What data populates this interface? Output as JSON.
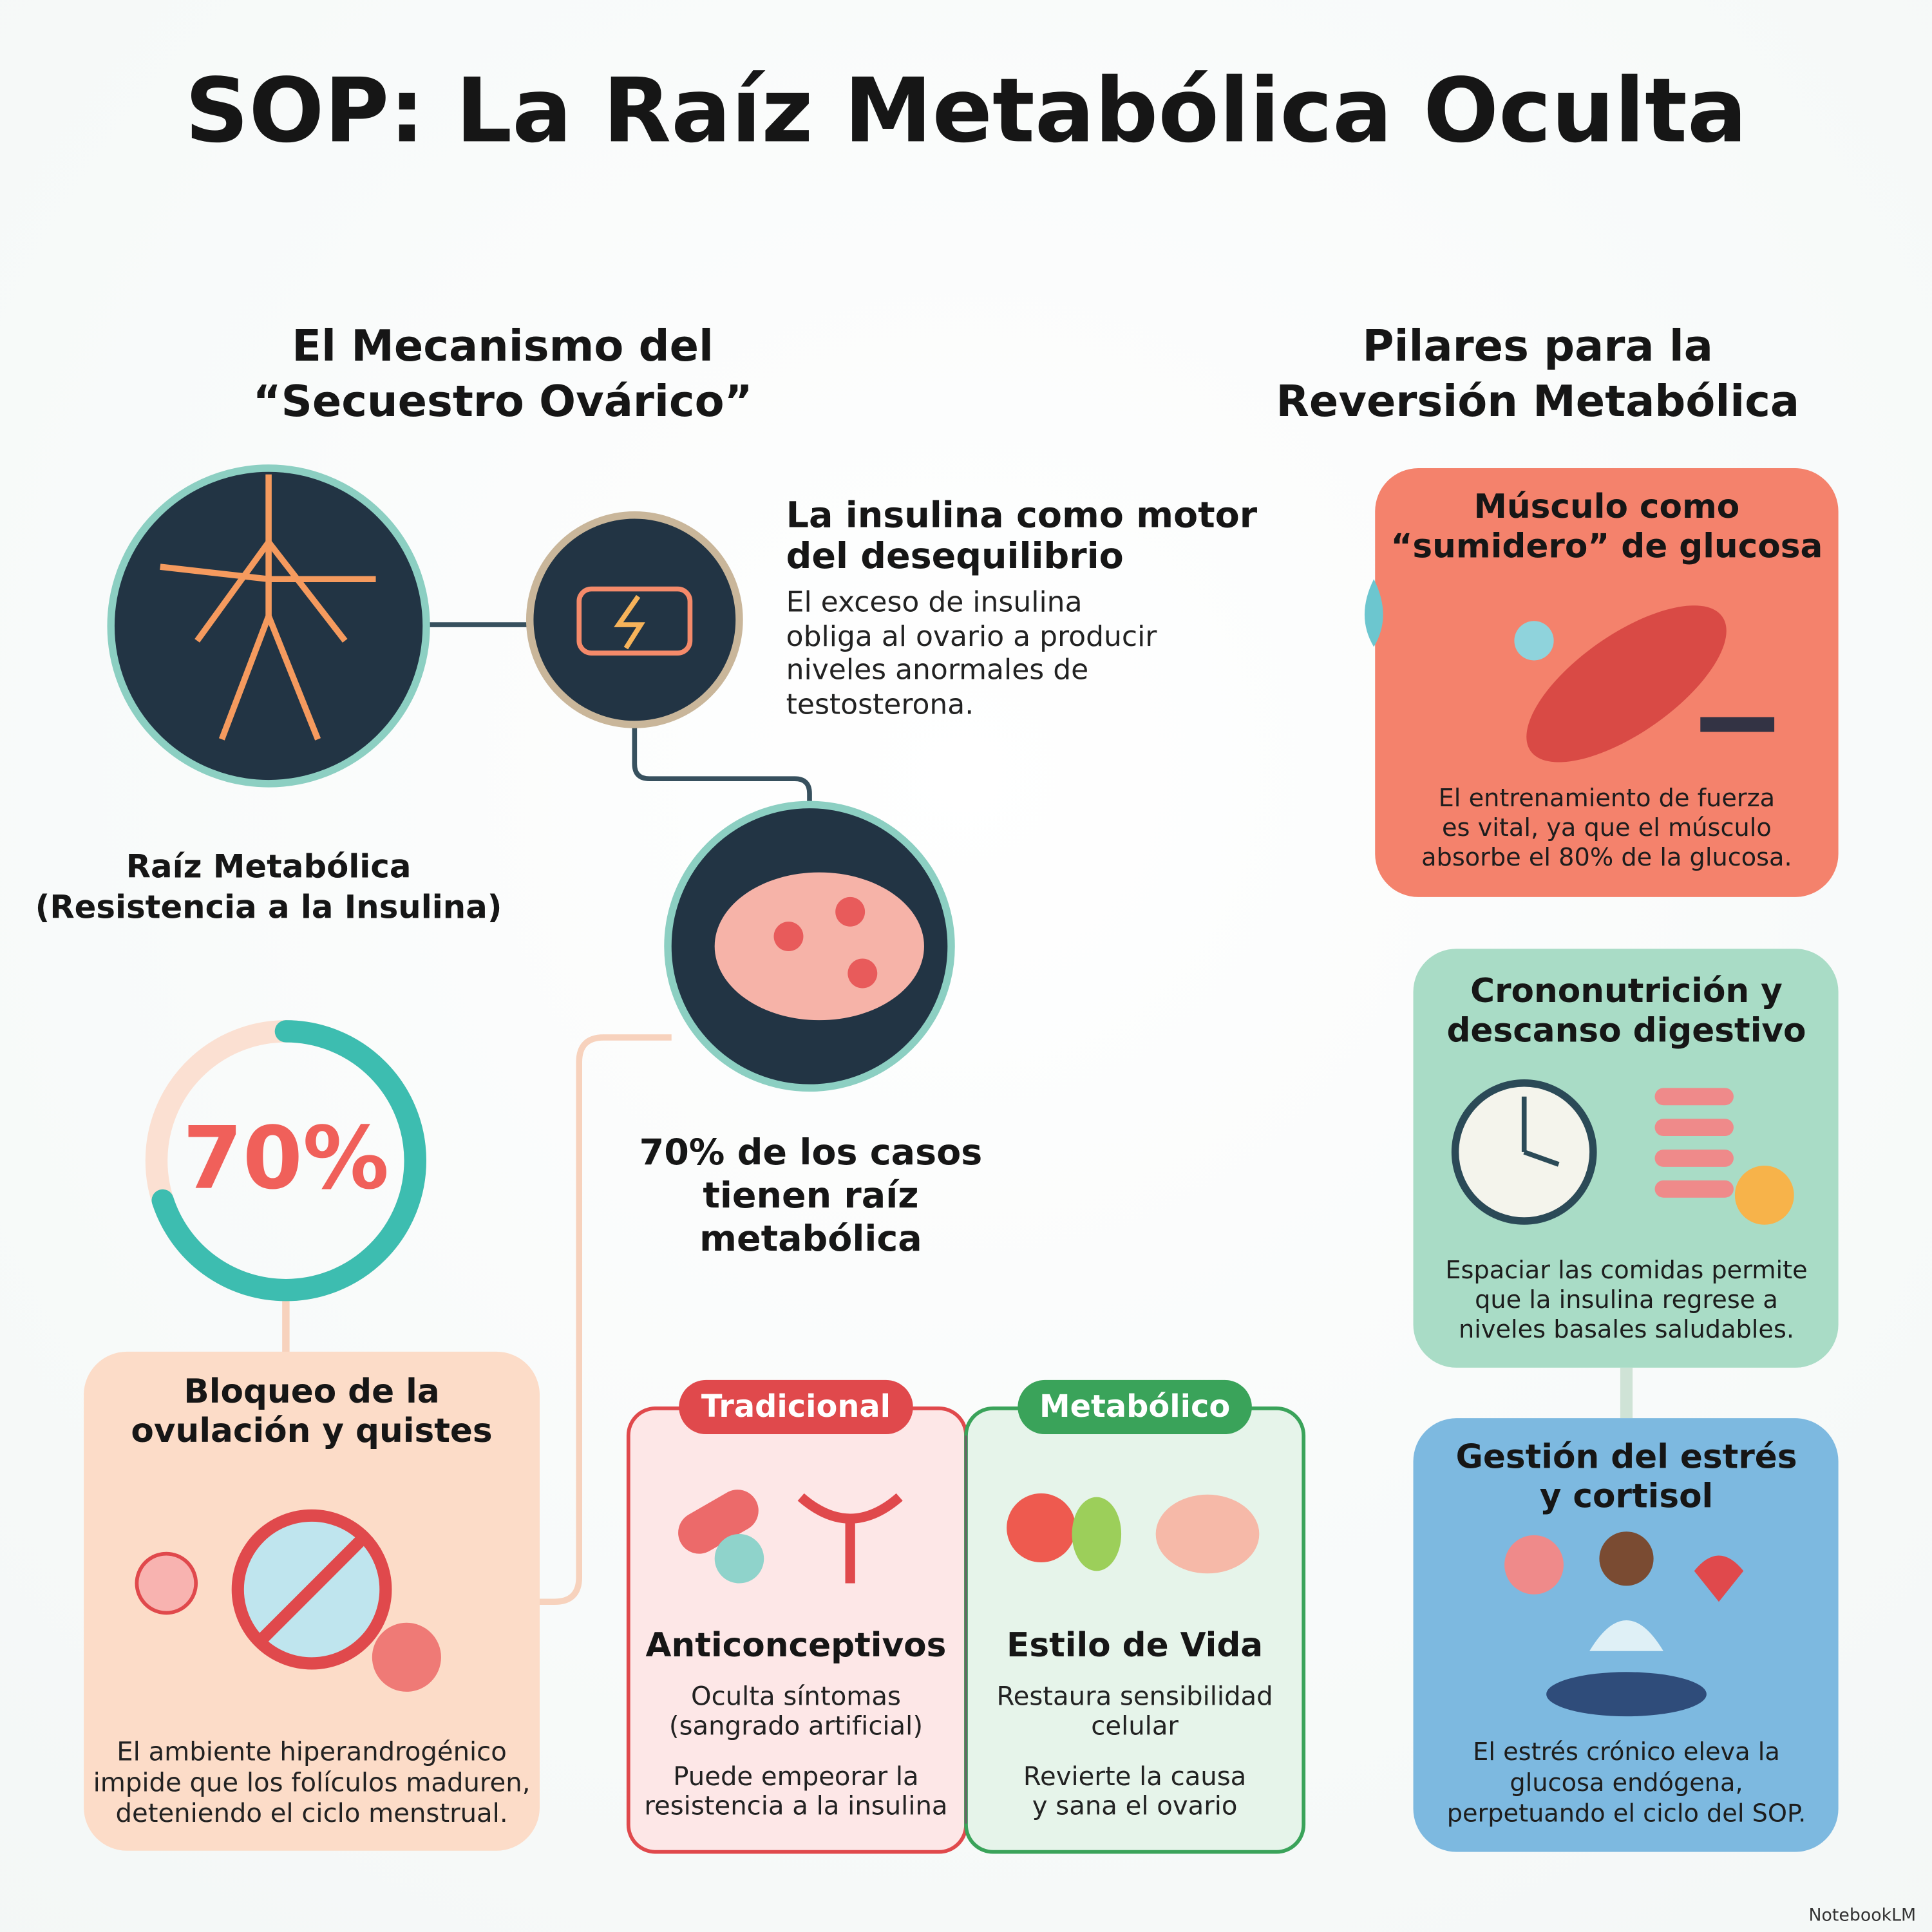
{
  "title": "SOP: La Raíz Metabólica Oculta",
  "mechanism": {
    "heading": [
      "El Mecanismo del",
      "“Secuestro Ovárico”"
    ],
    "root_label": [
      "Raíz Metabólica",
      "(Resistencia a la Insulina)"
    ],
    "insulin": {
      "title": [
        "La insulina como motor",
        "del desequilibrio"
      ],
      "text": [
        "El exceso de insulina",
        "obliga al ovario a producir",
        "niveles anormales de",
        "testosterona."
      ]
    },
    "cases": [
      "70% de los casos",
      "tienen raíz",
      "metabólica"
    ],
    "ring": {
      "value": 70,
      "label": "70%"
    },
    "blockage": {
      "title": [
        "Bloqueo de la",
        "ovulación y quistes"
      ],
      "text": [
        "El ambiente hiperandrogénico",
        "impide que los folículos maduren,",
        "deteniendo el ciclo menstrual."
      ]
    }
  },
  "comparison": {
    "traditional": {
      "tag": "Tradicional",
      "title": "Anticonceptivos",
      "points": [
        [
          "Oculta síntomas",
          "(sangrado artificial)"
        ],
        [
          "Puede empeorar la",
          "resistencia a la insulina"
        ]
      ]
    },
    "metabolic": {
      "tag": "Metabólico",
      "title": "Estilo de Vida",
      "points": [
        [
          "Restaura sensibilidad",
          "celular"
        ],
        [
          "Revierte la causa",
          "y sana el ovario"
        ]
      ]
    }
  },
  "pillars": {
    "heading": [
      "Pilares para la",
      "Reversión Metabólica"
    ],
    "cards": [
      {
        "title": [
          "Músculo como",
          "“sumidero” de glucosa"
        ],
        "text": [
          "El entrenamiento de fuerza",
          "es vital, ya que el músculo",
          "absorbe el 80% de la glucosa."
        ]
      },
      {
        "title": [
          "Crononutrición y",
          "descanso digestivo"
        ],
        "text": [
          "Espaciar las comidas permite",
          "que la insulina regrese a",
          "niveles basales saludables."
        ]
      },
      {
        "title": [
          "Gestión del estrés",
          "y cortisol"
        ],
        "text": [
          "El estrés crónico eleva la",
          "glucosa endógena,",
          "perpetuando el ciclo del SOP."
        ]
      }
    ]
  },
  "brand": "NotebookLM"
}
